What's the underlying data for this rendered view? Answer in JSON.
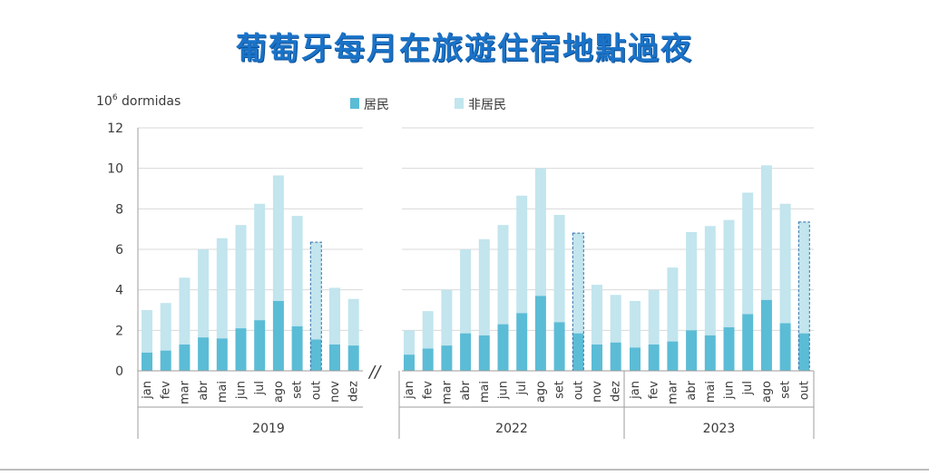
{
  "title": "葡萄牙每月在旅遊住宿地點過夜",
  "chart_data": {
    "type": "bar",
    "stacked": true,
    "ylabel_prefix": "10",
    "ylabel_exp": "6",
    "ylabel_suffix": " dormidas",
    "ylim": [
      0,
      12
    ],
    "yticks": [
      0,
      2,
      4,
      6,
      8,
      10,
      12
    ],
    "grid": true,
    "legend_position": "top",
    "axis_break": "//",
    "series": [
      {
        "name": "居民",
        "color": "#5bbcd6"
      },
      {
        "name": "非居民",
        "color": "#c2e5ee"
      }
    ],
    "groups": [
      {
        "year": "2019",
        "months": [
          "jan",
          "fev",
          "mar",
          "abr",
          "mai",
          "jun",
          "jul",
          "ago",
          "set",
          "out",
          "nov",
          "dez"
        ],
        "residents": [
          0.9,
          1.0,
          1.3,
          1.65,
          1.6,
          2.1,
          2.5,
          3.45,
          2.2,
          1.55,
          1.3,
          1.25
        ],
        "non_residents": [
          2.1,
          2.35,
          3.3,
          4.35,
          4.95,
          5.1,
          5.75,
          6.2,
          5.45,
          4.8,
          2.8,
          2.3
        ],
        "provisional": [
          false,
          false,
          false,
          false,
          false,
          false,
          false,
          false,
          false,
          true,
          false,
          false
        ]
      },
      {
        "year": "2022",
        "months": [
          "jan",
          "fev",
          "mar",
          "abr",
          "mai",
          "jun",
          "jul",
          "ago",
          "set",
          "out",
          "nov",
          "dez"
        ],
        "residents": [
          0.8,
          1.1,
          1.25,
          1.85,
          1.75,
          2.3,
          2.85,
          3.7,
          2.4,
          1.85,
          1.3,
          1.4
        ],
        "non_residents": [
          1.2,
          1.85,
          2.75,
          4.15,
          4.75,
          4.9,
          5.8,
          6.3,
          5.3,
          4.95,
          2.95,
          2.35
        ],
        "provisional": [
          false,
          false,
          false,
          false,
          false,
          false,
          false,
          false,
          false,
          true,
          false,
          false
        ]
      },
      {
        "year": "2023",
        "months": [
          "jan",
          "fev",
          "mar",
          "abr",
          "mai",
          "jun",
          "jul",
          "ago",
          "set",
          "out"
        ],
        "residents": [
          1.15,
          1.3,
          1.45,
          2.0,
          1.75,
          2.15,
          2.8,
          3.5,
          2.35,
          1.85
        ],
        "non_residents": [
          2.3,
          2.7,
          3.65,
          4.85,
          5.4,
          5.3,
          6.0,
          6.65,
          5.9,
          5.5
        ],
        "provisional": [
          false,
          false,
          false,
          false,
          false,
          false,
          false,
          false,
          false,
          true
        ]
      }
    ]
  }
}
